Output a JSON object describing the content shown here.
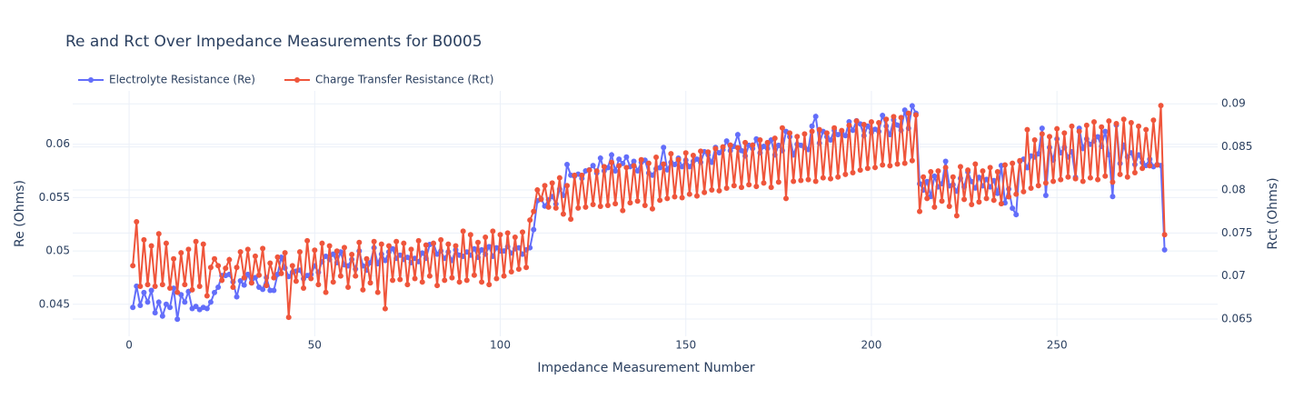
{
  "chart_data": {
    "type": "line",
    "title": "Re and Rct Over Impedance Measurements for B0005",
    "x_label": "Impedance Measurement Number",
    "y_label": "Re (Ohms)",
    "y2_label": "Rct (Ohms)",
    "legend": "top-left",
    "grid": true,
    "xlim": [
      -15.2,
      293.3
    ],
    "xticks": [
      0,
      50,
      100,
      150,
      200,
      250
    ],
    "ylim": [
      0.042,
      0.065
    ],
    "yticks": [
      0.045,
      0.05,
      0.055,
      0.06
    ],
    "y2lim": [
      0.063,
      0.0915
    ],
    "y2ticks": [
      0.065,
      0.07,
      0.075,
      0.08,
      0.085,
      0.09
    ],
    "x": [
      1,
      2,
      3,
      4,
      5,
      6,
      7,
      8,
      9,
      10,
      11,
      12,
      13,
      14,
      15,
      16,
      17,
      18,
      19,
      20,
      21,
      22,
      23,
      24,
      25,
      26,
      27,
      28,
      29,
      30,
      31,
      32,
      33,
      34,
      35,
      36,
      37,
      38,
      39,
      40,
      41,
      42,
      43,
      44,
      45,
      46,
      47,
      48,
      49,
      50,
      51,
      52,
      53,
      54,
      55,
      56,
      57,
      58,
      59,
      60,
      61,
      62,
      63,
      64,
      65,
      66,
      67,
      68,
      69,
      70,
      71,
      72,
      73,
      74,
      75,
      76,
      77,
      78,
      79,
      80,
      81,
      82,
      83,
      84,
      85,
      86,
      87,
      88,
      89,
      90,
      91,
      92,
      93,
      94,
      95,
      96,
      97,
      98,
      99,
      100,
      101,
      102,
      103,
      104,
      105,
      106,
      107,
      108,
      109,
      110,
      111,
      112,
      113,
      114,
      115,
      116,
      117,
      118,
      119,
      120,
      121,
      122,
      123,
      124,
      125,
      126,
      127,
      128,
      129,
      130,
      131,
      132,
      133,
      134,
      135,
      136,
      137,
      138,
      139,
      140,
      141,
      142,
      143,
      144,
      145,
      146,
      147,
      148,
      149,
      150,
      151,
      152,
      153,
      154,
      155,
      156,
      157,
      158,
      159,
      160,
      161,
      162,
      163,
      164,
      165,
      166,
      167,
      168,
      169,
      170,
      171,
      172,
      173,
      174,
      175,
      176,
      177,
      178,
      179,
      180,
      181,
      182,
      183,
      184,
      185,
      186,
      187,
      188,
      189,
      190,
      191,
      192,
      193,
      194,
      195,
      196,
      197,
      198,
      199,
      200,
      201,
      202,
      203,
      204,
      205,
      206,
      207,
      208,
      209,
      210,
      211,
      212,
      213,
      214,
      215,
      216,
      217,
      218,
      219,
      220,
      221,
      222,
      223,
      224,
      225,
      226,
      227,
      228,
      229,
      230,
      231,
      232,
      233,
      234,
      235,
      236,
      237,
      238,
      239,
      240,
      241,
      242,
      243,
      244,
      245,
      246,
      247,
      248,
      249,
      250,
      251,
      252,
      253,
      254,
      255,
      256,
      257,
      258,
      259,
      260,
      261,
      262,
      263,
      264,
      265,
      266,
      267,
      268,
      269,
      270,
      271,
      272,
      273,
      274,
      275,
      276,
      277,
      278,
      279
    ],
    "series": [
      {
        "name": "Electrolyte Resistance (Re)",
        "color": "#636efa",
        "axis": "y",
        "values": [
          0.0447,
          0.0467,
          0.0449,
          0.0461,
          0.0452,
          0.0463,
          0.0442,
          0.0452,
          0.0439,
          0.045,
          0.0447,
          0.0465,
          0.0436,
          0.0459,
          0.0452,
          0.0462,
          0.0446,
          0.0448,
          0.0445,
          0.0447,
          0.0446,
          0.0452,
          0.0461,
          0.0466,
          0.0477,
          0.0477,
          0.0478,
          0.0471,
          0.0457,
          0.0472,
          0.0468,
          0.0478,
          0.047,
          0.0475,
          0.0466,
          0.0464,
          0.0475,
          0.0463,
          0.0463,
          0.0478,
          0.0494,
          0.0484,
          0.0476,
          0.048,
          0.0481,
          0.0482,
          0.0474,
          0.0477,
          0.0478,
          0.0486,
          0.048,
          0.049,
          0.0495,
          0.0492,
          0.0497,
          0.0489,
          0.0499,
          0.0487,
          0.0486,
          0.0492,
          0.0483,
          0.05,
          0.0486,
          0.0482,
          0.0489,
          0.0503,
          0.0488,
          0.0497,
          0.0491,
          0.0499,
          0.0502,
          0.0493,
          0.0496,
          0.0492,
          0.0494,
          0.0489,
          0.0493,
          0.049,
          0.0498,
          0.0493,
          0.0506,
          0.0507,
          0.0497,
          0.05,
          0.0493,
          0.0499,
          0.0491,
          0.0501,
          0.0496,
          0.0495,
          0.0499,
          0.0496,
          0.0502,
          0.0494,
          0.0501,
          0.0497,
          0.0504,
          0.0495,
          0.0503,
          0.05,
          0.05,
          0.0504,
          0.0498,
          0.0502,
          0.0503,
          0.0497,
          0.0501,
          0.0503,
          0.052,
          0.0547,
          0.0549,
          0.0542,
          0.0548,
          0.0551,
          0.0544,
          0.0558,
          0.0552,
          0.0581,
          0.0571,
          0.057,
          0.0572,
          0.0568,
          0.0575,
          0.0576,
          0.058,
          0.0573,
          0.0587,
          0.0575,
          0.0578,
          0.059,
          0.0575,
          0.0586,
          0.0582,
          0.0588,
          0.0579,
          0.0584,
          0.0575,
          0.0583,
          0.0585,
          0.0573,
          0.0571,
          0.0577,
          0.0578,
          0.0597,
          0.0576,
          0.0583,
          0.0581,
          0.0587,
          0.0579,
          0.0585,
          0.0579,
          0.0584,
          0.0586,
          0.0583,
          0.0593,
          0.059,
          0.0583,
          0.0597,
          0.0592,
          0.0595,
          0.0603,
          0.0594,
          0.0598,
          0.0609,
          0.0594,
          0.0589,
          0.0599,
          0.0596,
          0.0605,
          0.0592,
          0.0598,
          0.0596,
          0.0604,
          0.059,
          0.0599,
          0.0594,
          0.0612,
          0.0607,
          0.059,
          0.06,
          0.0599,
          0.0597,
          0.0595,
          0.0617,
          0.0626,
          0.0601,
          0.0612,
          0.0607,
          0.0604,
          0.0613,
          0.0609,
          0.0611,
          0.0608,
          0.0621,
          0.0613,
          0.0622,
          0.0619,
          0.0608,
          0.0617,
          0.0611,
          0.0614,
          0.0612,
          0.0627,
          0.0617,
          0.0609,
          0.0623,
          0.0618,
          0.0613,
          0.0632,
          0.0615,
          0.0636,
          0.0629,
          0.0563,
          0.0557,
          0.0565,
          0.0551,
          0.057,
          0.056,
          0.0563,
          0.0584,
          0.0561,
          0.0562,
          0.0556,
          0.0568,
          0.056,
          0.0574,
          0.0565,
          0.0559,
          0.0569,
          0.0561,
          0.0567,
          0.056,
          0.0566,
          0.0554,
          0.058,
          0.0545,
          0.0558,
          0.054,
          0.0534,
          0.0584,
          0.0586,
          0.0578,
          0.0589,
          0.0588,
          0.0591,
          0.0615,
          0.0552,
          0.0597,
          0.0585,
          0.0605,
          0.0592,
          0.0597,
          0.0588,
          0.0593,
          0.0569,
          0.0615,
          0.0596,
          0.0605,
          0.06,
          0.0603,
          0.0607,
          0.0598,
          0.0612,
          0.059,
          0.0551,
          0.0618,
          0.0582,
          0.0599,
          0.0588,
          0.0592,
          0.0581,
          0.059,
          0.0583,
          0.058,
          0.0586,
          0.0579,
          0.0581,
          0.058,
          0.0501
        ]
      },
      {
        "name": "Charge Transfer Resistance (Rct)",
        "color": "#ef553b",
        "axis": "y2",
        "values": [
          0.0712,
          0.0763,
          0.0688,
          0.0742,
          0.069,
          0.0735,
          0.0688,
          0.0749,
          0.069,
          0.0738,
          0.0686,
          0.072,
          0.0681,
          0.0727,
          0.069,
          0.0731,
          0.0684,
          0.074,
          0.0688,
          0.0737,
          0.0677,
          0.071,
          0.072,
          0.0712,
          0.0695,
          0.0709,
          0.0719,
          0.0687,
          0.071,
          0.0728,
          0.0698,
          0.0731,
          0.0692,
          0.0723,
          0.0701,
          0.0732,
          0.0689,
          0.0715,
          0.0698,
          0.0722,
          0.0703,
          0.0727,
          0.0652,
          0.0712,
          0.0694,
          0.0728,
          0.0686,
          0.0741,
          0.0697,
          0.073,
          0.069,
          0.0738,
          0.0681,
          0.0735,
          0.0693,
          0.0729,
          0.07,
          0.0733,
          0.0687,
          0.0725,
          0.07,
          0.0739,
          0.0684,
          0.072,
          0.0692,
          0.074,
          0.0681,
          0.0737,
          0.0662,
          0.0735,
          0.0695,
          0.074,
          0.0696,
          0.0738,
          0.069,
          0.0731,
          0.0697,
          0.0741,
          0.0693,
          0.0736,
          0.07,
          0.0738,
          0.0689,
          0.0742,
          0.0695,
          0.0737,
          0.0698,
          0.0735,
          0.0693,
          0.0752,
          0.0695,
          0.0748,
          0.0701,
          0.0739,
          0.0693,
          0.0745,
          0.069,
          0.0752,
          0.0697,
          0.0748,
          0.07,
          0.075,
          0.0705,
          0.0745,
          0.0708,
          0.0751,
          0.071,
          0.0765,
          0.0775,
          0.08,
          0.0789,
          0.0805,
          0.078,
          0.0808,
          0.0779,
          0.0814,
          0.0772,
          0.0805,
          0.0766,
          0.0817,
          0.0779,
          0.0817,
          0.078,
          0.0823,
          0.0783,
          0.0822,
          0.0781,
          0.0827,
          0.0782,
          0.0832,
          0.0784,
          0.0828,
          0.0776,
          0.0826,
          0.0785,
          0.0828,
          0.0787,
          0.0835,
          0.0782,
          0.0831,
          0.0778,
          0.0838,
          0.0788,
          0.083,
          0.079,
          0.0842,
          0.0792,
          0.0835,
          0.0791,
          0.0843,
          0.0795,
          0.084,
          0.0793,
          0.0845,
          0.0797,
          0.0844,
          0.08,
          0.0848,
          0.0799,
          0.085,
          0.0802,
          0.0852,
          0.0805,
          0.0849,
          0.0803,
          0.0855,
          0.0806,
          0.0852,
          0.0804,
          0.0858,
          0.0808,
          0.0855,
          0.0803,
          0.086,
          0.0809,
          0.0872,
          0.079,
          0.0866,
          0.081,
          0.0862,
          0.0811,
          0.0865,
          0.0812,
          0.0868,
          0.081,
          0.087,
          0.0814,
          0.0866,
          0.0813,
          0.0872,
          0.0815,
          0.0869,
          0.0818,
          0.0875,
          0.082,
          0.088,
          0.0823,
          0.0876,
          0.0825,
          0.0879,
          0.0826,
          0.0878,
          0.0829,
          0.0882,
          0.0828,
          0.0885,
          0.083,
          0.0884,
          0.0831,
          0.0889,
          0.0834,
          0.0887,
          0.0775,
          0.0815,
          0.079,
          0.0821,
          0.078,
          0.0822,
          0.0787,
          0.0826,
          0.0781,
          0.0815,
          0.077,
          0.0827,
          0.0789,
          0.0823,
          0.0783,
          0.083,
          0.0786,
          0.0822,
          0.079,
          0.0826,
          0.0788,
          0.0821,
          0.0784,
          0.0829,
          0.0792,
          0.0831,
          0.0795,
          0.0834,
          0.0798,
          0.087,
          0.0802,
          0.0858,
          0.0805,
          0.0865,
          0.0808,
          0.0862,
          0.081,
          0.0871,
          0.0812,
          0.0866,
          0.0815,
          0.0874,
          0.0813,
          0.0868,
          0.081,
          0.0875,
          0.0814,
          0.0879,
          0.0812,
          0.0873,
          0.0816,
          0.088,
          0.0809,
          0.0877,
          0.0818,
          0.0882,
          0.0815,
          0.0878,
          0.082,
          0.0874,
          0.0825,
          0.087,
          0.0828,
          0.0881,
          0.0829,
          0.0898,
          0.0748
        ]
      }
    ]
  }
}
